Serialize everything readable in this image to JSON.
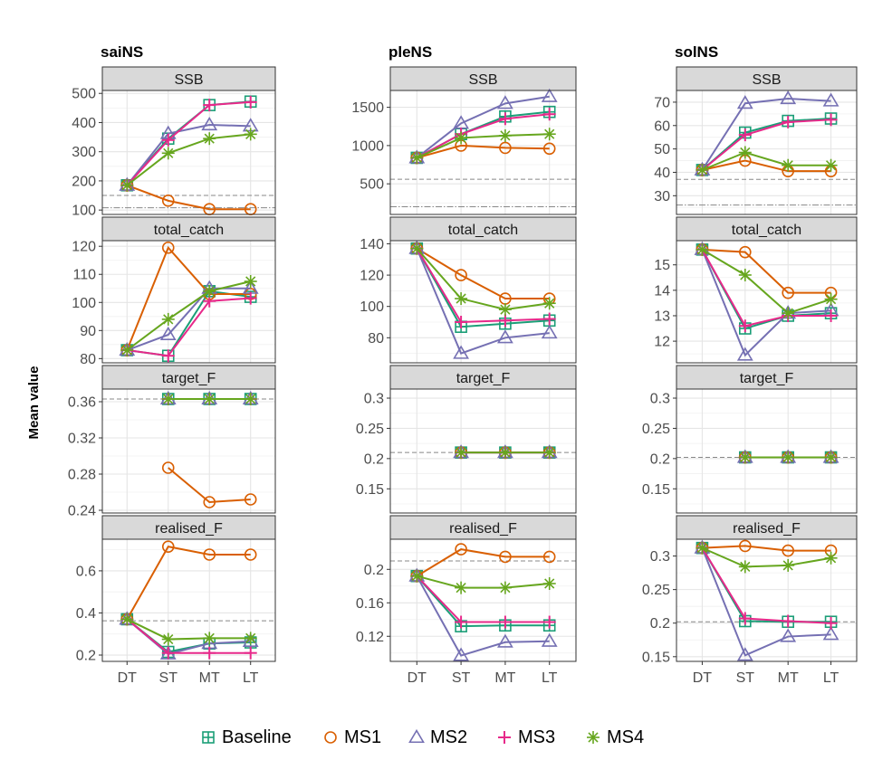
{
  "figure": {
    "ylabel": "Mean value",
    "x_categories": [
      "DT",
      "ST",
      "MT",
      "LT"
    ],
    "legend": [
      {
        "name": "Baseline",
        "color": "#1b9e77",
        "symbol": "square-plus"
      },
      {
        "name": "MS1",
        "color": "#d95f02",
        "symbol": "circle"
      },
      {
        "name": "MS2",
        "color": "#7570b3",
        "symbol": "triangle"
      },
      {
        "name": "MS3",
        "color": "#e7298a",
        "symbol": "plus"
      },
      {
        "name": "MS4",
        "color": "#66a61e",
        "symbol": "asterisk"
      }
    ],
    "columns": [
      "saiNS",
      "pleNS",
      "solNS"
    ],
    "rows": [
      "SSB",
      "total_catch",
      "target_F",
      "realised_F"
    ]
  },
  "chart_data": [
    {
      "type": "line",
      "stock": "saiNS",
      "panel": "SSB",
      "categories": [
        "DT",
        "ST",
        "MT",
        "LT"
      ],
      "ylim": [
        85,
        510
      ],
      "yticks": [
        100,
        200,
        300,
        400,
        500
      ],
      "hlines": [
        {
          "y": 150,
          "style": "dashed"
        },
        {
          "y": 108,
          "style": "dotdash"
        }
      ],
      "series": [
        {
          "name": "Baseline",
          "values": [
            185,
            345,
            460,
            472
          ]
        },
        {
          "name": "MS1",
          "values": [
            185,
            132,
            103,
            103
          ]
        },
        {
          "name": "MS2",
          "values": [
            185,
            362,
            392,
            388
          ]
        },
        {
          "name": "MS3",
          "values": [
            185,
            340,
            460,
            470
          ]
        },
        {
          "name": "MS4",
          "values": [
            185,
            295,
            345,
            360
          ]
        }
      ]
    },
    {
      "type": "line",
      "stock": "saiNS",
      "panel": "total_catch",
      "categories": [
        "DT",
        "ST",
        "MT",
        "LT"
      ],
      "ylim": [
        78.5,
        122
      ],
      "yticks": [
        80,
        90,
        100,
        110,
        120
      ],
      "hlines": [],
      "series": [
        {
          "name": "Baseline",
          "values": [
            83,
            81,
            104,
            102
          ]
        },
        {
          "name": "MS1",
          "values": [
            83,
            119.5,
            103,
            103
          ]
        },
        {
          "name": "MS2",
          "values": [
            83,
            88.5,
            105,
            105
          ]
        },
        {
          "name": "MS3",
          "values": [
            83,
            81,
            100.5,
            101.5
          ]
        },
        {
          "name": "MS4",
          "values": [
            83,
            94,
            104,
            107.5
          ]
        }
      ]
    },
    {
      "type": "line",
      "stock": "saiNS",
      "panel": "target_F",
      "categories": [
        "DT",
        "ST",
        "MT",
        "LT"
      ],
      "ylim": [
        0.237,
        0.374
      ],
      "yticks": [
        0.24,
        0.28,
        0.32,
        0.36
      ],
      "hlines": [
        {
          "y": 0.363,
          "style": "dashed"
        }
      ],
      "series": [
        {
          "name": "Baseline",
          "values": [
            null,
            0.363,
            0.363,
            0.363
          ]
        },
        {
          "name": "MS1",
          "values": [
            null,
            0.287,
            0.249,
            0.252
          ]
        },
        {
          "name": "MS2",
          "values": [
            null,
            0.363,
            0.363,
            0.363
          ]
        },
        {
          "name": "MS3",
          "values": [
            null,
            0.363,
            0.363,
            0.363
          ]
        },
        {
          "name": "MS4",
          "values": [
            null,
            0.363,
            0.363,
            0.363
          ]
        }
      ]
    },
    {
      "type": "line",
      "stock": "saiNS",
      "panel": "realised_F",
      "categories": [
        "DT",
        "ST",
        "MT",
        "LT"
      ],
      "ylim": [
        0.17,
        0.75
      ],
      "yticks": [
        0.2,
        0.4,
        0.6
      ],
      "hlines": [
        {
          "y": 0.363,
          "style": "dashed"
        }
      ],
      "series": [
        {
          "name": "Baseline",
          "values": [
            0.37,
            0.215,
            0.255,
            0.26
          ]
        },
        {
          "name": "MS1",
          "values": [
            0.37,
            0.715,
            0.677,
            0.677
          ]
        },
        {
          "name": "MS2",
          "values": [
            0.37,
            0.205,
            0.255,
            0.265
          ]
        },
        {
          "name": "MS3",
          "values": [
            0.37,
            0.21,
            0.21,
            0.21
          ]
        },
        {
          "name": "MS4",
          "values": [
            0.37,
            0.275,
            0.28,
            0.28
          ]
        }
      ]
    },
    {
      "type": "line",
      "stock": "pleNS",
      "panel": "SSB",
      "categories": [
        "DT",
        "ST",
        "MT",
        "LT"
      ],
      "ylim": [
        100,
        1720
      ],
      "yticks": [
        500,
        1000,
        1500
      ],
      "hlines": [
        {
          "y": 560,
          "style": "dashed"
        },
        {
          "y": 200,
          "style": "dotdash"
        }
      ],
      "series": [
        {
          "name": "Baseline",
          "values": [
            840,
            1150,
            1380,
            1440
          ]
        },
        {
          "name": "MS1",
          "values": [
            840,
            1000,
            970,
            960
          ]
        },
        {
          "name": "MS2",
          "values": [
            840,
            1290,
            1550,
            1640
          ]
        },
        {
          "name": "MS3",
          "values": [
            840,
            1150,
            1350,
            1410
          ]
        },
        {
          "name": "MS4",
          "values": [
            840,
            1100,
            1130,
            1150
          ]
        }
      ]
    },
    {
      "type": "line",
      "stock": "pleNS",
      "panel": "total_catch",
      "categories": [
        "DT",
        "ST",
        "MT",
        "LT"
      ],
      "ylim": [
        64,
        142
      ],
      "yticks": [
        80,
        100,
        120,
        140
      ],
      "hlines": [],
      "series": [
        {
          "name": "Baseline",
          "values": [
            137,
            87,
            89,
            91
          ]
        },
        {
          "name": "MS1",
          "values": [
            137,
            120,
            105,
            105
          ]
        },
        {
          "name": "MS2",
          "values": [
            137,
            70,
            80,
            83
          ]
        },
        {
          "name": "MS3",
          "values": [
            137,
            90,
            91,
            92
          ]
        },
        {
          "name": "MS4",
          "values": [
            137,
            105,
            98,
            102
          ]
        }
      ]
    },
    {
      "type": "line",
      "stock": "pleNS",
      "panel": "target_F",
      "categories": [
        "DT",
        "ST",
        "MT",
        "LT"
      ],
      "ylim": [
        0.11,
        0.315
      ],
      "yticks": [
        0.15,
        0.2,
        0.25,
        0.3
      ],
      "hlines": [
        {
          "y": 0.21,
          "style": "dashed"
        }
      ],
      "series": [
        {
          "name": "Baseline",
          "values": [
            null,
            0.21,
            0.21,
            0.21
          ]
        },
        {
          "name": "MS1",
          "values": [
            null,
            0.21,
            0.21,
            0.21
          ]
        },
        {
          "name": "MS2",
          "values": [
            null,
            0.21,
            0.21,
            0.21
          ]
        },
        {
          "name": "MS3",
          "values": [
            null,
            0.21,
            0.21,
            0.21
          ]
        },
        {
          "name": "MS4",
          "values": [
            null,
            0.21,
            0.21,
            0.21
          ]
        }
      ]
    },
    {
      "type": "line",
      "stock": "pleNS",
      "panel": "realised_F",
      "categories": [
        "DT",
        "ST",
        "MT",
        "LT"
      ],
      "ylim": [
        0.09,
        0.236
      ],
      "yticks": [
        0.12,
        0.16,
        0.2
      ],
      "hlines": [
        {
          "y": 0.21,
          "style": "dashed"
        }
      ],
      "series": [
        {
          "name": "Baseline",
          "values": [
            0.192,
            0.132,
            0.133,
            0.133
          ]
        },
        {
          "name": "MS1",
          "values": [
            0.192,
            0.224,
            0.215,
            0.215
          ]
        },
        {
          "name": "MS2",
          "values": [
            0.192,
            0.097,
            0.113,
            0.114
          ]
        },
        {
          "name": "MS3",
          "values": [
            0.192,
            0.137,
            0.137,
            0.137
          ]
        },
        {
          "name": "MS4",
          "values": [
            0.192,
            0.178,
            0.178,
            0.183
          ]
        }
      ]
    },
    {
      "type": "line",
      "stock": "solNS",
      "panel": "SSB",
      "categories": [
        "DT",
        "ST",
        "MT",
        "LT"
      ],
      "ylim": [
        22,
        75
      ],
      "yticks": [
        30,
        40,
        50,
        60,
        70
      ],
      "hlines": [
        {
          "y": 37,
          "style": "dashed"
        },
        {
          "y": 26,
          "style": "dotdash"
        }
      ],
      "series": [
        {
          "name": "Baseline",
          "values": [
            41,
            57,
            62,
            63
          ]
        },
        {
          "name": "MS1",
          "values": [
            41,
            45,
            40.5,
            40.5
          ]
        },
        {
          "name": "MS2",
          "values": [
            41,
            69.5,
            71.5,
            70.5
          ]
        },
        {
          "name": "MS3",
          "values": [
            41,
            56,
            61.5,
            62.5
          ]
        },
        {
          "name": "MS4",
          "values": [
            41,
            48.5,
            43,
            43
          ]
        }
      ]
    },
    {
      "type": "line",
      "stock": "solNS",
      "panel": "total_catch",
      "categories": [
        "DT",
        "ST",
        "MT",
        "LT"
      ],
      "ylim": [
        11.15,
        15.95
      ],
      "yticks": [
        12,
        13,
        14,
        15
      ],
      "hlines": [],
      "series": [
        {
          "name": "Baseline",
          "values": [
            15.6,
            12.5,
            13.0,
            13.1
          ]
        },
        {
          "name": "MS1",
          "values": [
            15.6,
            15.5,
            13.9,
            13.9
          ]
        },
        {
          "name": "MS2",
          "values": [
            15.6,
            11.45,
            13.1,
            13.2
          ]
        },
        {
          "name": "MS3",
          "values": [
            15.6,
            12.6,
            13.0,
            13.0
          ]
        },
        {
          "name": "MS4",
          "values": [
            15.6,
            14.6,
            13.1,
            13.65
          ]
        }
      ]
    },
    {
      "type": "line",
      "stock": "solNS",
      "panel": "target_F",
      "categories": [
        "DT",
        "ST",
        "MT",
        "LT"
      ],
      "ylim": [
        0.11,
        0.315
      ],
      "yticks": [
        0.15,
        0.2,
        0.25,
        0.3
      ],
      "hlines": [
        {
          "y": 0.202,
          "style": "dashed"
        }
      ],
      "series": [
        {
          "name": "Baseline",
          "values": [
            null,
            0.202,
            0.202,
            0.202
          ]
        },
        {
          "name": "MS1",
          "values": [
            null,
            0.202,
            0.202,
            0.202
          ]
        },
        {
          "name": "MS2",
          "values": [
            null,
            0.202,
            0.202,
            0.202
          ]
        },
        {
          "name": "MS3",
          "values": [
            null,
            0.202,
            0.202,
            0.202
          ]
        },
        {
          "name": "MS4",
          "values": [
            null,
            0.202,
            0.202,
            0.202
          ]
        }
      ]
    },
    {
      "type": "line",
      "stock": "solNS",
      "panel": "realised_F",
      "categories": [
        "DT",
        "ST",
        "MT",
        "LT"
      ],
      "ylim": [
        0.143,
        0.325
      ],
      "yticks": [
        0.15,
        0.2,
        0.25,
        0.3
      ],
      "hlines": [
        {
          "y": 0.202,
          "style": "dashed"
        }
      ],
      "series": [
        {
          "name": "Baseline",
          "values": [
            0.312,
            0.203,
            0.202,
            0.202
          ]
        },
        {
          "name": "MS1",
          "values": [
            0.312,
            0.315,
            0.308,
            0.308
          ]
        },
        {
          "name": "MS2",
          "values": [
            0.312,
            0.152,
            0.18,
            0.183
          ]
        },
        {
          "name": "MS3",
          "values": [
            0.312,
            0.207,
            0.203,
            0.2
          ]
        },
        {
          "name": "MS4",
          "values": [
            0.312,
            0.284,
            0.286,
            0.297
          ]
        }
      ]
    }
  ]
}
